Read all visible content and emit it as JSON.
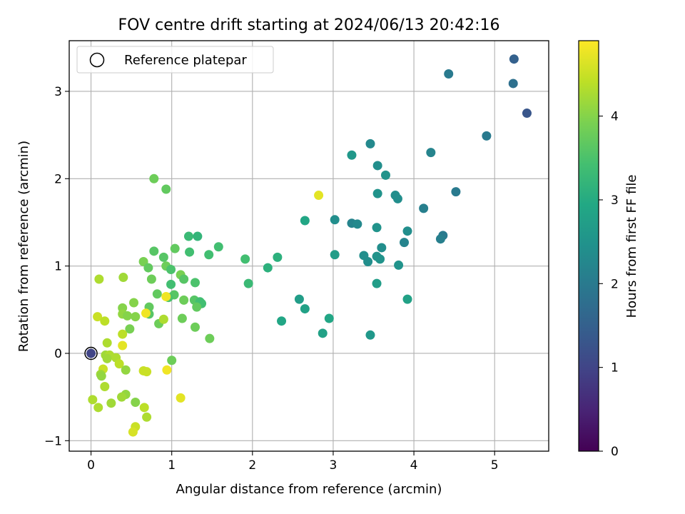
{
  "chart_data": {
    "type": "scatter",
    "title": "FOV centre drift starting at 2024/06/13 20:42:16",
    "xlabel": "Angular distance from reference (arcmin)",
    "ylabel": "Rotation from reference (arcmin)",
    "xlim": [
      -0.27,
      5.67
    ],
    "ylim": [
      -1.12,
      3.58
    ],
    "xticks": [
      0,
      1,
      2,
      3,
      4,
      5
    ],
    "yticks": [
      -1,
      0,
      1,
      2,
      3
    ],
    "grid": true,
    "legend": {
      "placement": "top-left",
      "entries": [
        "Reference platepar"
      ]
    },
    "reference_point": {
      "x": 0,
      "y": 0,
      "c": 1.0
    },
    "colorbar": {
      "label": "Hours from first FF file",
      "range": [
        0,
        4.9
      ],
      "ticks": [
        0,
        1,
        2,
        3,
        4
      ],
      "colormap": "viridis"
    },
    "points": [
      {
        "x": 5.24,
        "y": 3.37,
        "c": 1.5
      },
      {
        "x": 4.43,
        "y": 3.2,
        "c": 2.0
      },
      {
        "x": 5.23,
        "y": 3.09,
        "c": 1.8
      },
      {
        "x": 5.4,
        "y": 2.75,
        "c": 1.3
      },
      {
        "x": 4.9,
        "y": 2.49,
        "c": 2.0
      },
      {
        "x": 3.46,
        "y": 2.4,
        "c": 2.3
      },
      {
        "x": 4.21,
        "y": 2.3,
        "c": 2.2
      },
      {
        "x": 3.23,
        "y": 2.27,
        "c": 2.6
      },
      {
        "x": 3.55,
        "y": 2.15,
        "c": 2.4
      },
      {
        "x": 3.65,
        "y": 2.04,
        "c": 2.5
      },
      {
        "x": 4.52,
        "y": 1.85,
        "c": 2.0
      },
      {
        "x": 3.55,
        "y": 1.83,
        "c": 2.5
      },
      {
        "x": 3.77,
        "y": 1.81,
        "c": 2.4
      },
      {
        "x": 3.8,
        "y": 1.77,
        "c": 2.4
      },
      {
        "x": 2.82,
        "y": 1.81,
        "c": 4.7
      },
      {
        "x": 4.12,
        "y": 1.66,
        "c": 2.1
      },
      {
        "x": 3.02,
        "y": 1.53,
        "c": 2.4
      },
      {
        "x": 2.65,
        "y": 1.52,
        "c": 2.9
      },
      {
        "x": 3.23,
        "y": 1.49,
        "c": 2.2
      },
      {
        "x": 3.3,
        "y": 1.48,
        "c": 2.3
      },
      {
        "x": 3.54,
        "y": 1.44,
        "c": 2.5
      },
      {
        "x": 3.92,
        "y": 1.4,
        "c": 2.4
      },
      {
        "x": 4.36,
        "y": 1.35,
        "c": 2.0
      },
      {
        "x": 4.33,
        "y": 1.31,
        "c": 2.1
      },
      {
        "x": 3.88,
        "y": 1.27,
        "c": 2.2
      },
      {
        "x": 3.6,
        "y": 1.21,
        "c": 2.4
      },
      {
        "x": 3.02,
        "y": 1.13,
        "c": 2.7
      },
      {
        "x": 3.38,
        "y": 1.12,
        "c": 2.4
      },
      {
        "x": 3.54,
        "y": 1.11,
        "c": 2.5
      },
      {
        "x": 3.58,
        "y": 1.08,
        "c": 2.5
      },
      {
        "x": 3.43,
        "y": 1.05,
        "c": 2.4
      },
      {
        "x": 3.81,
        "y": 1.01,
        "c": 2.5
      },
      {
        "x": 3.54,
        "y": 0.8,
        "c": 2.7
      },
      {
        "x": 3.92,
        "y": 0.62,
        "c": 2.8
      },
      {
        "x": 2.95,
        "y": 0.4,
        "c": 2.9
      },
      {
        "x": 2.87,
        "y": 0.23,
        "c": 2.8
      },
      {
        "x": 3.46,
        "y": 0.21,
        "c": 2.6
      },
      {
        "x": 2.58,
        "y": 0.62,
        "c": 2.7
      },
      {
        "x": 2.65,
        "y": 0.51,
        "c": 2.8
      },
      {
        "x": 2.36,
        "y": 0.37,
        "c": 2.9
      },
      {
        "x": 2.31,
        "y": 1.1,
        "c": 3.1
      },
      {
        "x": 2.19,
        "y": 0.98,
        "c": 3.1
      },
      {
        "x": 1.91,
        "y": 1.08,
        "c": 3.4
      },
      {
        "x": 1.95,
        "y": 0.8,
        "c": 3.3
      },
      {
        "x": 1.58,
        "y": 1.22,
        "c": 3.4
      },
      {
        "x": 1.21,
        "y": 1.34,
        "c": 3.3
      },
      {
        "x": 1.32,
        "y": 1.34,
        "c": 3.2
      },
      {
        "x": 1.22,
        "y": 1.16,
        "c": 3.4
      },
      {
        "x": 1.46,
        "y": 1.13,
        "c": 3.4
      },
      {
        "x": 0.78,
        "y": 2.0,
        "c": 3.8
      },
      {
        "x": 0.93,
        "y": 1.88,
        "c": 3.7
      },
      {
        "x": 1.04,
        "y": 1.2,
        "c": 3.7
      },
      {
        "x": 0.78,
        "y": 1.17,
        "c": 3.6
      },
      {
        "x": 0.65,
        "y": 1.05,
        "c": 3.9
      },
      {
        "x": 0.9,
        "y": 1.1,
        "c": 3.6
      },
      {
        "x": 0.71,
        "y": 0.98,
        "c": 3.7
      },
      {
        "x": 0.93,
        "y": 1.0,
        "c": 3.8
      },
      {
        "x": 0.99,
        "y": 0.96,
        "c": 3.5
      },
      {
        "x": 1.11,
        "y": 0.9,
        "c": 3.9
      },
      {
        "x": 1.15,
        "y": 0.85,
        "c": 3.6
      },
      {
        "x": 0.75,
        "y": 0.85,
        "c": 3.8
      },
      {
        "x": 1.29,
        "y": 0.81,
        "c": 3.5
      },
      {
        "x": 0.99,
        "y": 0.79,
        "c": 3.4
      },
      {
        "x": 0.82,
        "y": 0.68,
        "c": 3.7
      },
      {
        "x": 1.03,
        "y": 0.67,
        "c": 3.6
      },
      {
        "x": 0.96,
        "y": 0.64,
        "c": 3.5
      },
      {
        "x": 1.15,
        "y": 0.61,
        "c": 3.8
      },
      {
        "x": 1.28,
        "y": 0.61,
        "c": 3.6
      },
      {
        "x": 1.35,
        "y": 0.59,
        "c": 3.4
      },
      {
        "x": 1.37,
        "y": 0.57,
        "c": 3.4
      },
      {
        "x": 1.31,
        "y": 0.53,
        "c": 3.7
      },
      {
        "x": 0.93,
        "y": 0.65,
        "c": 4.8
      },
      {
        "x": 0.72,
        "y": 0.53,
        "c": 3.7
      },
      {
        "x": 0.72,
        "y": 0.45,
        "c": 3.6
      },
      {
        "x": 0.68,
        "y": 0.46,
        "c": 4.8
      },
      {
        "x": 0.84,
        "y": 0.34,
        "c": 3.8
      },
      {
        "x": 0.9,
        "y": 0.39,
        "c": 4.3
      },
      {
        "x": 1.13,
        "y": 0.4,
        "c": 3.8
      },
      {
        "x": 1.29,
        "y": 0.3,
        "c": 3.8
      },
      {
        "x": 1.47,
        "y": 0.17,
        "c": 3.8
      },
      {
        "x": 0.53,
        "y": 0.58,
        "c": 4.0
      },
      {
        "x": 0.39,
        "y": 0.52,
        "c": 4.0
      },
      {
        "x": 0.39,
        "y": 0.45,
        "c": 4.1
      },
      {
        "x": 0.45,
        "y": 0.43,
        "c": 4.0
      },
      {
        "x": 0.55,
        "y": 0.42,
        "c": 4.0
      },
      {
        "x": 0.48,
        "y": 0.28,
        "c": 3.9
      },
      {
        "x": 0.39,
        "y": 0.22,
        "c": 4.4
      },
      {
        "x": 0.39,
        "y": 0.09,
        "c": 4.7
      },
      {
        "x": 0.4,
        "y": 0.87,
        "c": 4.2
      },
      {
        "x": 0.1,
        "y": 0.85,
        "c": 4.3
      },
      {
        "x": 0.08,
        "y": 0.42,
        "c": 4.5
      },
      {
        "x": 0.17,
        "y": 0.37,
        "c": 4.4
      },
      {
        "x": 0.2,
        "y": 0.12,
        "c": 4.3
      },
      {
        "x": 0.18,
        "y": -0.02,
        "c": 4.2
      },
      {
        "x": 0.23,
        "y": -0.02,
        "c": 4.3
      },
      {
        "x": 0.2,
        "y": -0.06,
        "c": 4.2
      },
      {
        "x": 0.31,
        "y": -0.05,
        "c": 4.3
      },
      {
        "x": 0.35,
        "y": -0.12,
        "c": 4.4
      },
      {
        "x": 0.43,
        "y": -0.19,
        "c": 4.1
      },
      {
        "x": 0.15,
        "y": -0.18,
        "c": 4.5
      },
      {
        "x": 0.12,
        "y": -0.24,
        "c": 4.2
      },
      {
        "x": 0.13,
        "y": -0.26,
        "c": 4.1
      },
      {
        "x": 0.17,
        "y": -0.38,
        "c": 4.3
      },
      {
        "x": 0.65,
        "y": -0.2,
        "c": 4.5
      },
      {
        "x": 0.69,
        "y": -0.21,
        "c": 4.5
      },
      {
        "x": 1.0,
        "y": -0.08,
        "c": 3.8
      },
      {
        "x": 0.94,
        "y": -0.19,
        "c": 4.8
      },
      {
        "x": 1.11,
        "y": -0.51,
        "c": 4.7
      },
      {
        "x": 0.43,
        "y": -0.47,
        "c": 4.1
      },
      {
        "x": 0.38,
        "y": -0.5,
        "c": 4.2
      },
      {
        "x": 0.02,
        "y": -0.53,
        "c": 4.3
      },
      {
        "x": 0.09,
        "y": -0.62,
        "c": 4.3
      },
      {
        "x": 0.25,
        "y": -0.57,
        "c": 4.2
      },
      {
        "x": 0.55,
        "y": -0.56,
        "c": 4.0
      },
      {
        "x": 0.66,
        "y": -0.62,
        "c": 4.4
      },
      {
        "x": 0.69,
        "y": -0.73,
        "c": 4.3
      },
      {
        "x": 0.55,
        "y": -0.84,
        "c": 4.5
      },
      {
        "x": 0.52,
        "y": -0.9,
        "c": 4.6
      }
    ]
  }
}
